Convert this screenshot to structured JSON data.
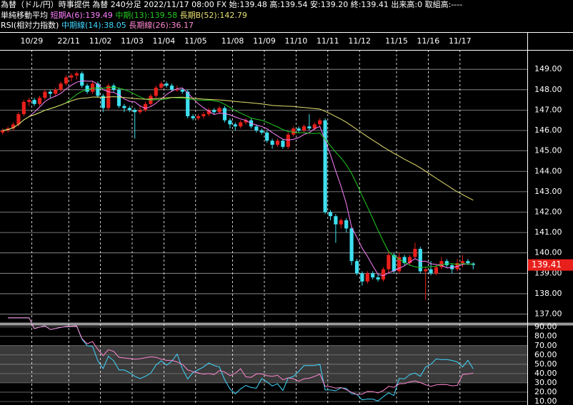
{
  "header": {
    "line1": "為替（ドル/円）時事提供 為替 240分足 2022/11/17 08:00 FX 始:139.48 高:139.54 安:139.20 終:139.41 出来高:0 取組高:----",
    "ma_title": "単純移動平均",
    "rsi_title": "RSI(相対力指数)"
  },
  "chart_data": {
    "type": "candlestick",
    "ylim": [
      136.6,
      149.95
    ],
    "yticks": [
      {
        "value": 137,
        "label": "137.00"
      },
      {
        "value": 138,
        "label": "138.00"
      },
      {
        "value": 139,
        "label": "139.00"
      },
      {
        "value": 140,
        "label": "140.00"
      },
      {
        "value": 141,
        "label": "141.00"
      },
      {
        "value": 142,
        "label": "142.00"
      },
      {
        "value": 143,
        "label": "143.00"
      },
      {
        "value": 144,
        "label": "144.00"
      },
      {
        "value": 145,
        "label": "145.00"
      },
      {
        "value": 146,
        "label": "146.00"
      },
      {
        "value": 147,
        "label": "147.00"
      },
      {
        "value": 148,
        "label": "148.00"
      },
      {
        "value": 149,
        "label": "149.00"
      }
    ],
    "last_price": {
      "value": 139.41,
      "label": "139.41"
    },
    "up_color": "#e8201c",
    "down_color": "#3fe0f0",
    "ma": [
      {
        "name": "短期A(6):139.49",
        "period": 6,
        "color": "#ff80ff"
      },
      {
        "name": "中期(13):139.58",
        "period": 13,
        "color": "#22cc22"
      },
      {
        "name": "長期B(52):142.79",
        "period": 52,
        "color": "#e6e070"
      }
    ],
    "rsi": {
      "ylim": [
        6.2,
        91.3
      ],
      "yticks": [
        {
          "value": 10,
          "label": "10.00"
        },
        {
          "value": 20,
          "label": "20.00"
        },
        {
          "value": 30,
          "label": "30.00"
        },
        {
          "value": 40,
          "label": "40.00"
        },
        {
          "value": 50,
          "label": "50.00"
        },
        {
          "value": 60,
          "label": "60.00"
        },
        {
          "value": 70,
          "label": "70.00"
        },
        {
          "value": 80,
          "label": "80.00"
        },
        {
          "value": 90,
          "label": "90.00"
        }
      ],
      "band": [
        30,
        70
      ],
      "series": [
        {
          "name": "中期線(14):38.05",
          "period": 14,
          "color": "#40d8ff"
        },
        {
          "name": "長期線(26):36.17",
          "period": 26,
          "color": "#ff88d0"
        }
      ]
    },
    "days": [
      {
        "label": null,
        "candles": [
          [
            145.9,
            146.1,
            145.8,
            146.0
          ],
          [
            146.0,
            146.2,
            145.9,
            146.1
          ],
          [
            146.1,
            146.4,
            146.0,
            146.3
          ],
          [
            146.3,
            146.9,
            146.2,
            146.8
          ],
          [
            146.8,
            147.5,
            146.7,
            147.4
          ],
          [
            147.4,
            147.6,
            147.2,
            147.5
          ]
        ]
      },
      {
        "label": "10/29",
        "candles": [
          [
            147.5,
            147.6,
            147.2,
            147.3
          ],
          [
            147.3,
            147.7,
            147.2,
            147.6
          ],
          [
            147.6,
            148.0,
            147.5,
            147.9
          ],
          [
            147.9,
            148.0,
            147.6,
            147.8
          ],
          [
            147.8,
            148.1,
            147.7,
            148.0
          ],
          [
            148.0,
            148.4,
            147.9,
            148.3
          ],
          [
            148.3,
            148.7,
            148.2,
            148.6
          ]
        ]
      },
      {
        "label": "22/11",
        "candles": [
          [
            148.6,
            148.8,
            148.4,
            148.7
          ],
          [
            148.7,
            148.9,
            148.5,
            148.8
          ],
          [
            148.8,
            148.9,
            148.1,
            148.2
          ],
          [
            148.2,
            148.3,
            147.8,
            147.9
          ],
          [
            147.9,
            148.4,
            147.8,
            148.3
          ],
          [
            148.3,
            148.4,
            147.6,
            147.7
          ]
        ]
      },
      {
        "label": "11/02",
        "candles": [
          [
            147.7,
            147.8,
            146.9,
            147.1
          ],
          [
            147.1,
            148.3,
            147.0,
            148.2
          ],
          [
            148.2,
            148.3,
            147.9,
            148.0
          ],
          [
            148.0,
            148.1,
            147.1,
            147.2
          ],
          [
            147.2,
            147.3,
            146.9,
            147.1
          ],
          [
            147.1,
            147.2,
            146.9,
            147.0
          ]
        ]
      },
      {
        "label": "11/03",
        "candles": [
          [
            147.0,
            147.1,
            145.6,
            146.9
          ],
          [
            146.9,
            147.2,
            146.8,
            147.0
          ],
          [
            147.0,
            147.4,
            146.9,
            147.3
          ],
          [
            147.3,
            147.8,
            147.2,
            147.7
          ],
          [
            147.7,
            148.2,
            147.6,
            148.1
          ],
          [
            148.1,
            148.4,
            148.0,
            148.3
          ]
        ]
      },
      {
        "label": "11/04",
        "candles": [
          [
            148.3,
            148.4,
            148.1,
            148.2
          ],
          [
            148.2,
            148.3,
            147.9,
            148.0
          ],
          [
            148.0,
            148.2,
            147.9,
            148.0
          ],
          [
            148.0,
            148.1,
            147.8,
            147.9
          ],
          [
            147.9,
            148.0,
            146.6,
            146.7
          ],
          [
            146.7,
            146.8,
            146.5,
            146.6
          ]
        ]
      },
      {
        "label": "11/05",
        "candles": [
          [
            146.6,
            146.8,
            146.5,
            146.7
          ],
          [
            146.7,
            146.9,
            146.6,
            146.8
          ],
          [
            146.8,
            147.1,
            146.7,
            147.0
          ],
          [
            147.0,
            147.1,
            146.8,
            146.9
          ],
          [
            146.9,
            147.2,
            146.8,
            147.1
          ],
          [
            147.1,
            147.2,
            146.4,
            146.5
          ],
          [
            146.5,
            146.6,
            146.1,
            146.3
          ]
        ]
      },
      {
        "label": "11/08",
        "candles": [
          [
            146.3,
            146.4,
            146.0,
            146.2
          ],
          [
            146.2,
            146.5,
            146.1,
            146.4
          ],
          [
            146.4,
            146.6,
            146.3,
            146.5
          ],
          [
            146.5,
            146.6,
            146.1,
            146.2
          ],
          [
            146.2,
            146.3,
            145.9,
            146.0
          ],
          [
            146.0,
            146.1,
            145.8,
            145.9
          ]
        ]
      },
      {
        "label": "11/09",
        "candles": [
          [
            145.9,
            146.0,
            145.4,
            145.5
          ],
          [
            145.5,
            145.6,
            145.1,
            145.3
          ],
          [
            145.3,
            145.6,
            145.2,
            145.5
          ],
          [
            145.5,
            145.6,
            145.1,
            145.2
          ],
          [
            145.2,
            145.9,
            145.1,
            145.8
          ],
          [
            145.8,
            146.2,
            145.7,
            146.1
          ]
        ]
      },
      {
        "label": "11/10",
        "candles": [
          [
            146.1,
            146.2,
            145.9,
            146.0
          ],
          [
            146.0,
            146.3,
            145.9,
            146.2
          ],
          [
            146.2,
            146.8,
            146.0,
            146.1
          ],
          [
            146.1,
            146.4,
            146.0,
            146.3
          ],
          [
            146.3,
            146.6,
            146.2,
            146.5
          ],
          [
            146.5,
            146.6,
            141.9,
            142.0
          ]
        ]
      },
      {
        "label": "11/11",
        "candles": [
          [
            142.0,
            142.1,
            141.6,
            141.8
          ],
          [
            141.8,
            141.9,
            140.5,
            141.4
          ],
          [
            141.4,
            141.7,
            141.2,
            141.6
          ],
          [
            141.6,
            141.7,
            141.0,
            141.2
          ],
          [
            141.2,
            141.3,
            139.4,
            139.6
          ],
          [
            139.6,
            139.7,
            138.9,
            139.0
          ]
        ]
      },
      {
        "label": "11/12",
        "candles": [
          [
            139.0,
            139.1,
            138.4,
            138.6
          ],
          [
            138.6,
            139.1,
            138.5,
            139.0
          ],
          [
            139.0,
            139.1,
            138.7,
            138.8
          ],
          [
            138.8,
            139.0,
            138.6,
            138.7
          ],
          [
            138.7,
            139.3,
            138.6,
            139.2
          ],
          [
            139.2,
            140.1,
            139.0,
            139.9
          ],
          [
            139.9,
            140.0,
            139.0,
            139.1
          ]
        ]
      },
      {
        "label": "11/15",
        "candles": [
          [
            139.1,
            140.0,
            139.0,
            139.8
          ],
          [
            139.8,
            139.9,
            139.4,
            139.5
          ],
          [
            139.5,
            139.9,
            139.4,
            139.8
          ],
          [
            139.8,
            140.5,
            139.7,
            140.2
          ],
          [
            140.2,
            140.3,
            139.0,
            139.1
          ],
          [
            139.1,
            139.3,
            137.7,
            139.2
          ]
        ]
      },
      {
        "label": "11/16",
        "candles": [
          [
            139.2,
            139.6,
            138.9,
            139.0
          ],
          [
            139.0,
            139.4,
            138.9,
            139.3
          ],
          [
            139.3,
            139.8,
            139.2,
            139.6
          ],
          [
            139.6,
            139.7,
            139.3,
            139.4
          ],
          [
            139.4,
            139.5,
            139.0,
            139.2
          ],
          [
            139.2,
            139.7,
            139.1,
            139.5
          ]
        ]
      },
      {
        "label": "11/17",
        "candles": [
          [
            139.5,
            139.9,
            139.3,
            139.6
          ],
          [
            139.6,
            139.7,
            139.4,
            139.5
          ],
          [
            139.48,
            139.54,
            139.2,
            139.41
          ]
        ]
      }
    ]
  }
}
